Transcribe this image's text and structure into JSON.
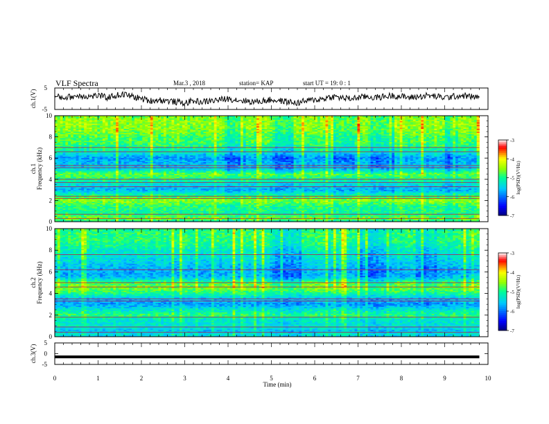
{
  "header": {
    "title": "VLF Spectra",
    "date": "Mar.3 , 2018",
    "station": "station= KAP",
    "start": "start UT = 19: 0 : 1"
  },
  "colors": {
    "trace": "#000000",
    "colormap": [
      "#000080",
      "#0000ff",
      "#00c8ff",
      "#00ff96",
      "#96ff00",
      "#ffff00",
      "#ff0000",
      "#ffffff"
    ]
  },
  "chart_data": [
    {
      "type": "line",
      "panel": "ch1-waveform",
      "ylabel": "ch.1(V)",
      "ylim": [
        -5,
        5
      ],
      "yticks": [
        "5",
        "-5"
      ],
      "xlim": [
        0,
        10
      ],
      "x_extent_min": 9.8,
      "samples_min": [
        0.0,
        0.2,
        0.4,
        0.6,
        0.8,
        1.0,
        1.2,
        1.4,
        1.6,
        1.8,
        2.0,
        2.2,
        2.4,
        2.6,
        2.8,
        3.0,
        3.2,
        3.4,
        3.6,
        3.8,
        4.0,
        4.2,
        4.4,
        4.6,
        4.8,
        5.0,
        5.2,
        5.4,
        5.6,
        5.8,
        6.0,
        6.2,
        6.4,
        6.6,
        6.8,
        7.0,
        7.2,
        7.4,
        7.6,
        7.8,
        8.0,
        8.2,
        8.4,
        8.6,
        8.8,
        9.0,
        9.2,
        9.4,
        9.6,
        9.8
      ],
      "values_v": [
        1.0,
        0.5,
        1.0,
        1.5,
        1.0,
        1.5,
        0.5,
        1.5,
        2.0,
        1.0,
        0.0,
        -1.0,
        -0.5,
        -1.0,
        -1.5,
        -2.0,
        -1.0,
        -1.5,
        -1.0,
        -0.5,
        0.0,
        -0.5,
        -1.0,
        -1.5,
        -1.0,
        -0.5,
        -1.0,
        -1.5,
        -2.0,
        -1.0,
        -0.5,
        0.0,
        1.0,
        0.5,
        0.0,
        0.5,
        1.0,
        0.5,
        1.0,
        1.5,
        1.0,
        0.5,
        1.0,
        1.5,
        1.0,
        0.5,
        1.0,
        1.5,
        1.0,
        0.5
      ],
      "noise_amplitude_v": 1.5
    },
    {
      "type": "heatmap",
      "panel": "ch1-spectrogram",
      "ylabel_channel": "ch.1",
      "ylabel": "Frequency (kHz)",
      "ylim": [
        0,
        10
      ],
      "yticks": [
        "0",
        "2",
        "4",
        "6",
        "8",
        "10"
      ],
      "xlim": [
        0,
        10
      ],
      "x_extent_min": 9.8,
      "log_psd_by_khz": {
        "khz": [
          0.0,
          0.25,
          0.5,
          0.75,
          1.0,
          1.5,
          2.0,
          2.5,
          3.0,
          3.5,
          4.0,
          4.5,
          5.0,
          5.5,
          6.0,
          6.5,
          7.0,
          7.5,
          8.0,
          8.5,
          9.0,
          9.5,
          10.0
        ],
        "log_psd": [
          -5.2,
          -4.6,
          -4.8,
          -5.0,
          -5.0,
          -4.9,
          -4.5,
          -5.0,
          -5.7,
          -5.4,
          -5.0,
          -4.7,
          -5.5,
          -5.6,
          -5.8,
          -5.3,
          -5.0,
          -4.8,
          -4.8,
          -4.6,
          -4.5,
          -4.5,
          -4.6
        ]
      },
      "lines_khz": [
        0.3,
        0.7,
        2.2,
        2.4,
        3.3,
        3.7,
        4.0,
        5.1,
        5.3,
        6.6,
        7.0
      ],
      "dark_bands_min": [
        [
          3.9,
          4.4
        ],
        [
          5.0,
          5.5
        ],
        [
          6.4,
          6.9
        ],
        [
          7.3,
          7.9
        ],
        [
          9.0,
          9.3
        ]
      ],
      "colorbar": {
        "label": "log(PSD)(V²/Hz)",
        "range": [
          -7,
          -3
        ],
        "ticks": [
          "-3",
          "-4",
          "-5",
          "-6",
          "-7"
        ]
      }
    },
    {
      "type": "heatmap",
      "panel": "ch2-spectrogram",
      "ylabel_channel": "ch.2",
      "ylabel": "Frequency (kHz)",
      "ylim": [
        0,
        10
      ],
      "yticks": [
        "0",
        "2",
        "4",
        "6",
        "8",
        "10"
      ],
      "xlim": [
        0,
        10
      ],
      "x_extent_min": 9.8,
      "log_psd_by_khz": {
        "khz": [
          0.0,
          0.25,
          0.5,
          0.75,
          1.0,
          1.5,
          2.0,
          2.5,
          3.0,
          3.5,
          4.0,
          4.5,
          5.0,
          5.5,
          6.0,
          6.5,
          7.0,
          7.5,
          8.0,
          8.5,
          9.0,
          9.5,
          10.0
        ],
        "log_psd": [
          -5.5,
          -5.3,
          -5.6,
          -5.4,
          -5.3,
          -5.3,
          -4.9,
          -5.3,
          -5.8,
          -5.6,
          -5.0,
          -4.6,
          -4.8,
          -5.6,
          -5.7,
          -5.6,
          -5.4,
          -5.3,
          -5.2,
          -5.0,
          -4.9,
          -4.9,
          -5.0
        ]
      },
      "lines_khz": [
        0.4,
        0.9,
        1.8,
        3.3,
        3.5,
        4.6,
        5.0,
        6.2,
        7.6
      ],
      "dark_bands_min": [
        [
          5.0,
          5.7
        ],
        [
          7.0,
          7.8
        ],
        [
          8.3,
          8.8
        ]
      ],
      "colorbar": {
        "label": "log(PSD)(V²/Hz)",
        "range": [
          -7,
          -3
        ],
        "ticks": [
          "-3",
          "-4",
          "-5",
          "-6",
          "-7"
        ]
      }
    },
    {
      "type": "line",
      "panel": "ch3-waveform",
      "ylabel": "ch.3(V)",
      "ylim": [
        -5,
        5
      ],
      "yticks": [
        "5",
        "0",
        "-5"
      ],
      "xlim": [
        0,
        10
      ],
      "x_extent_min": 9.8,
      "samples_min": [
        0.0,
        9.8
      ],
      "values_v": [
        -1.5,
        -1.5
      ]
    }
  ],
  "xaxis": {
    "label": "Time (min)",
    "ticks": [
      "0",
      "1",
      "2",
      "3",
      "4",
      "5",
      "6",
      "7",
      "8",
      "9",
      "10"
    ]
  }
}
